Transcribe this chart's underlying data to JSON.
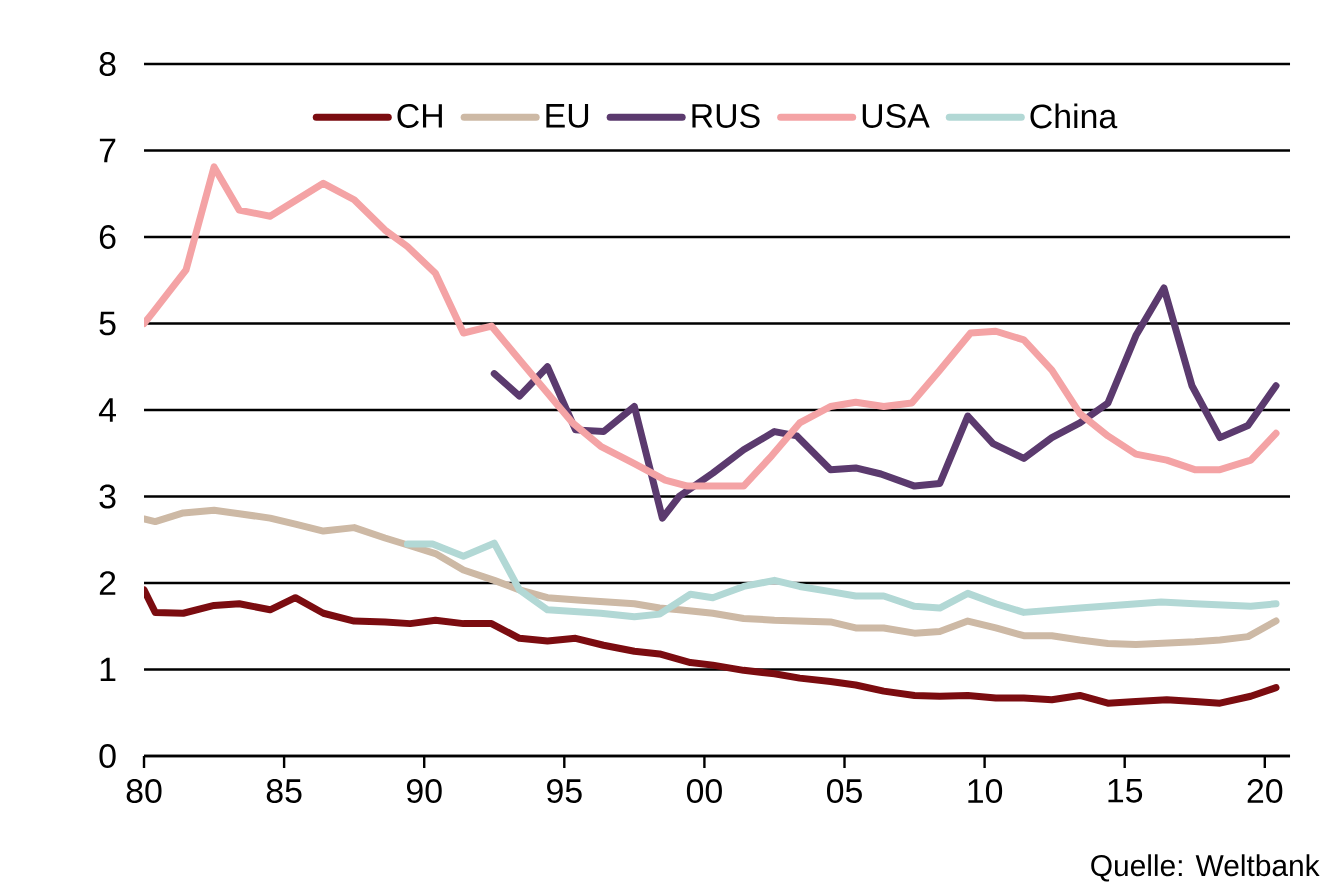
{
  "chart_data": {
    "type": "line",
    "xlim": [
      1980,
      2020.9
    ],
    "ylim": [
      0,
      8
    ],
    "xticks": [
      {
        "value": 1980,
        "label": "80"
      },
      {
        "value": 1985,
        "label": "85"
      },
      {
        "value": 1990,
        "label": "90"
      },
      {
        "value": 1995,
        "label": "95"
      },
      {
        "value": 2000,
        "label": "00"
      },
      {
        "value": 2005,
        "label": "05"
      },
      {
        "value": 2010,
        "label": "10"
      },
      {
        "value": 2015,
        "label": "15"
      },
      {
        "value": 2020,
        "label": "20"
      }
    ],
    "yticks": [
      0,
      1,
      2,
      3,
      4,
      5,
      6,
      7,
      8
    ],
    "grid": "y",
    "legend": "top",
    "annotations": [
      "Quelle: Weltbank"
    ],
    "series": [
      {
        "name": "CH",
        "color": "#7b0c10",
        "x": [
          1980.0,
          1980.4,
          1981.4,
          1982.5,
          1983.4,
          1984.5,
          1985.4,
          1986.4,
          1987.5,
          1988.6,
          1989.5,
          1990.4,
          1991.4,
          1992.4,
          1993.4,
          1994.4,
          1995.4,
          1996.4,
          1997.5,
          1998.4,
          1999.5,
          2000.3,
          2001.4,
          2002.5,
          2003.4,
          2004.5,
          2005.4,
          2006.4,
          2007.5,
          2008.4,
          2009.4,
          2010.4,
          2011.4,
          2012.4,
          2013.4,
          2014.4,
          2015.4,
          2016.5,
          2017.5,
          2018.4,
          2019.5,
          2020.4
        ],
        "values": [
          1.92,
          1.66,
          1.65,
          1.74,
          1.76,
          1.69,
          1.83,
          1.65,
          1.56,
          1.55,
          1.53,
          1.57,
          1.53,
          1.53,
          1.36,
          1.33,
          1.36,
          1.28,
          1.21,
          1.18,
          1.08,
          1.05,
          0.99,
          0.95,
          0.9,
          0.86,
          0.82,
          0.75,
          0.7,
          0.69,
          0.7,
          0.67,
          0.67,
          0.65,
          0.7,
          0.61,
          0.63,
          0.65,
          0.63,
          0.61,
          0.69,
          0.79
        ]
      },
      {
        "name": "EU",
        "color": "#cdb9a5",
        "x": [
          1980.0,
          1980.4,
          1981.4,
          1982.5,
          1983.4,
          1984.5,
          1985.4,
          1986.4,
          1987.5,
          1988.6,
          1989.5,
          1990.4,
          1991.4,
          1992.5,
          1993.4,
          1994.4,
          1995.6,
          1997.5,
          1998.4,
          1999.1,
          2000.3,
          2001.4,
          2002.5,
          2004.5,
          2005.4,
          2006.4,
          2007.5,
          2008.4,
          2009.4,
          2010.4,
          2011.4,
          2012.4,
          2013.4,
          2014.4,
          2015.4,
          2017.5,
          2018.4,
          2019.4,
          2020.4
        ],
        "values": [
          2.74,
          2.71,
          2.81,
          2.84,
          2.8,
          2.75,
          2.68,
          2.6,
          2.64,
          2.52,
          2.43,
          2.34,
          2.15,
          2.03,
          1.92,
          1.83,
          1.8,
          1.76,
          1.71,
          1.69,
          1.65,
          1.59,
          1.57,
          1.55,
          1.48,
          1.48,
          1.42,
          1.44,
          1.56,
          1.48,
          1.39,
          1.39,
          1.34,
          1.3,
          1.29,
          1.32,
          1.34,
          1.38,
          1.56
        ]
      },
      {
        "name": "RUS",
        "color": "#5b3a6e",
        "x": [
          1992.5,
          1993.4,
          1994.4,
          1995.4,
          1996.4,
          1997.5,
          1998.5,
          1999.1,
          2000.3,
          2001.4,
          2002.5,
          2003.3,
          2004.5,
          2005.4,
          2006.3,
          2007.5,
          2008.4,
          2009.4,
          2010.3,
          2011.4,
          2012.4,
          2013.4,
          2014.4,
          2015.4,
          2016.4,
          2017.4,
          2018.4,
          2019.4,
          2020.4
        ],
        "values": [
          4.42,
          4.16,
          4.5,
          3.77,
          3.75,
          4.04,
          2.75,
          3.0,
          3.27,
          3.54,
          3.75,
          3.7,
          3.31,
          3.33,
          3.26,
          3.12,
          3.15,
          3.93,
          3.61,
          3.44,
          3.68,
          3.85,
          4.08,
          4.86,
          5.41,
          4.28,
          3.68,
          3.82,
          4.28
        ]
      },
      {
        "name": "USA",
        "color": "#f4a3a5",
        "x": [
          1980.0,
          1980.3,
          1981.5,
          1982.5,
          1983.4,
          1984.5,
          1986.4,
          1987.5,
          1988.6,
          1989.4,
          1990.4,
          1991.4,
          1992.4,
          1993.4,
          1995.3,
          1996.3,
          1997.5,
          1998.6,
          1999.4,
          2001.4,
          2002.4,
          2003.4,
          2004.5,
          2005.4,
          2006.4,
          2007.4,
          2008.4,
          2009.5,
          2010.4,
          2011.4,
          2012.4,
          2013.4,
          2014.4,
          2015.4,
          2016.5,
          2017.5,
          2018.4,
          2019.5,
          2020.4
        ],
        "values": [
          5.0,
          5.12,
          5.62,
          6.81,
          6.31,
          6.24,
          6.62,
          6.43,
          6.08,
          5.89,
          5.58,
          4.89,
          4.97,
          4.58,
          3.85,
          3.58,
          3.38,
          3.19,
          3.12,
          3.12,
          3.47,
          3.85,
          4.04,
          4.09,
          4.04,
          4.08,
          4.46,
          4.89,
          4.91,
          4.81,
          4.46,
          3.96,
          3.7,
          3.49,
          3.42,
          3.31,
          3.31,
          3.42,
          3.73
        ]
      },
      {
        "name": "China",
        "color": "#b2d8d5",
        "x": [
          1989.4,
          1990.3,
          1991.4,
          1992.5,
          1993.4,
          1994.4,
          1996.3,
          1997.5,
          1998.4,
          1999.5,
          2000.3,
          2001.4,
          2002.5,
          2003.4,
          2004.5,
          2005.4,
          2006.4,
          2007.5,
          2008.4,
          2009.4,
          2010.4,
          2011.4,
          2013.4,
          2016.3,
          2017.5,
          2019.5,
          2020.4
        ],
        "values": [
          2.45,
          2.45,
          2.31,
          2.46,
          1.92,
          1.69,
          1.65,
          1.61,
          1.64,
          1.87,
          1.83,
          1.96,
          2.03,
          1.96,
          1.9,
          1.85,
          1.85,
          1.73,
          1.71,
          1.88,
          1.76,
          1.66,
          1.71,
          1.78,
          1.76,
          1.73,
          1.76
        ]
      }
    ]
  }
}
